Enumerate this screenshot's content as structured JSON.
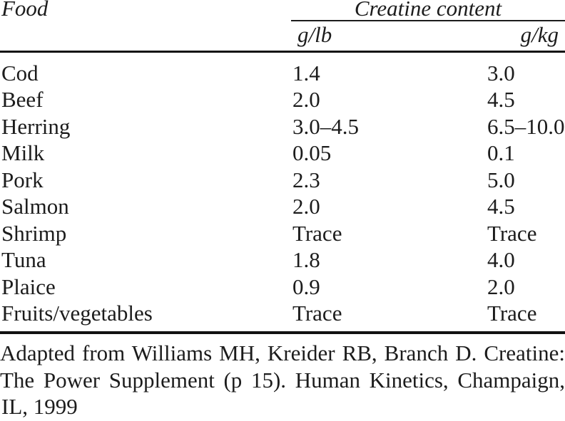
{
  "table": {
    "col1_header": "Food",
    "spanner_header": "Creatine content",
    "subheaders": {
      "col2": "g/lb",
      "col3": "g/kg"
    },
    "rows": [
      {
        "food": "Cod",
        "g_lb": "1.4",
        "g_kg": "3.0"
      },
      {
        "food": "Beef",
        "g_lb": "2.0",
        "g_kg": "4.5"
      },
      {
        "food": "Herring",
        "g_lb": "3.0–4.5",
        "g_kg": "6.5–10.0"
      },
      {
        "food": "Milk",
        "g_lb": "0.05",
        "g_kg": "0.1"
      },
      {
        "food": "Pork",
        "g_lb": "2.3",
        "g_kg": "5.0"
      },
      {
        "food": "Salmon",
        "g_lb": "2.0",
        "g_kg": "4.5"
      },
      {
        "food": "Shrimp",
        "g_lb": "Trace",
        "g_kg": "Trace"
      },
      {
        "food": "Tuna",
        "g_lb": "1.8",
        "g_kg": "4.0"
      },
      {
        "food": "Plaice",
        "g_lb": "0.9",
        "g_kg": "2.0"
      },
      {
        "food": "Fruits/vegetables",
        "g_lb": "Trace",
        "g_kg": "Trace"
      }
    ]
  },
  "footer": {
    "lines": [
      "Adapted from Williams MH, Kreider RB, Branch D. Creatine:",
      "The Power Supplement (p 15). Human Kinetics, Champaign,",
      "IL, 1999"
    ]
  },
  "colors": {
    "text": "#1c1c1c",
    "rule": "#111111",
    "background": "#ffffff"
  }
}
